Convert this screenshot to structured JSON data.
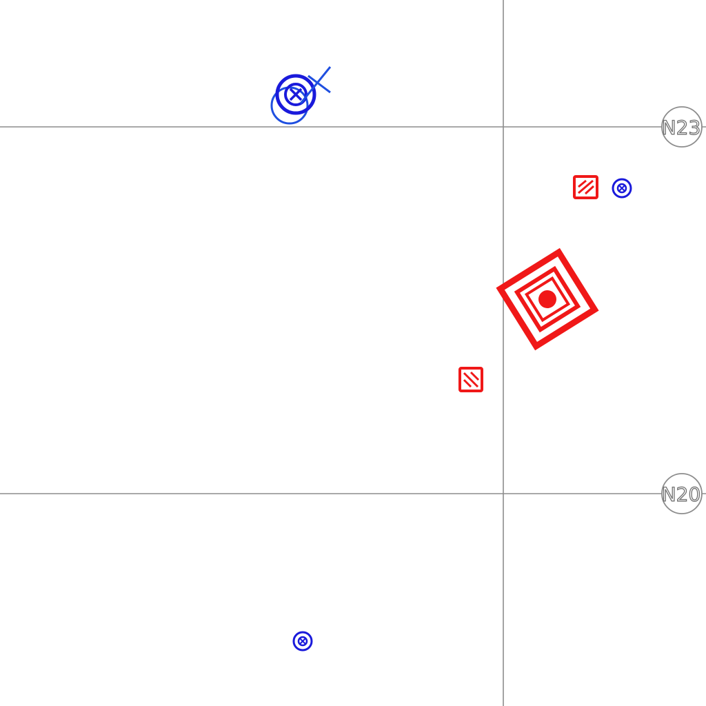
{
  "colors": {
    "gridline": "#8c8c8c",
    "blue_symbol": "#1a1adb",
    "blue_light_symbol": "#1f4fe0",
    "red_symbol": "#f01818",
    "background": "#ffffff"
  },
  "grid": {
    "bubbles": [
      {
        "label": "N23"
      },
      {
        "label": "N20"
      }
    ]
  },
  "symbols": {
    "blue_device_cluster": {
      "icon": "concentric-circle-with-x-and-cross-icon"
    },
    "blue_small_symbol_right": {
      "icon": "circle-with-x-icon"
    },
    "blue_small_symbol_bottom": {
      "icon": "circle-with-x-icon"
    },
    "red_panel_upper": {
      "icon": "hatched-square-panel-icon"
    },
    "red_panel_lower": {
      "icon": "hatched-square-panel-icon"
    },
    "red_target_equipment": {
      "icon": "nested-rotated-square-with-dot-icon"
    }
  }
}
